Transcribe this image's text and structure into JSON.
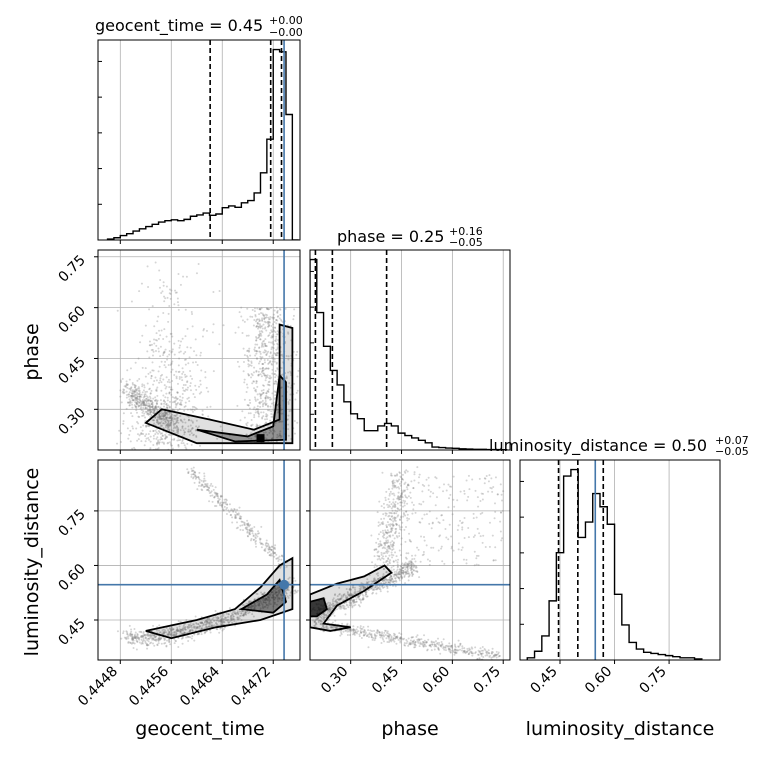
{
  "chart_data": {
    "type": "corner",
    "parameters": [
      "geocent_time",
      "phase",
      "luminosity_distance"
    ],
    "panel_titles": [
      {
        "param": "geocent_time",
        "prefix": "geocent_time = ",
        "median": "0.45",
        "upper": "+0.00",
        "lower": "−0.00"
      },
      {
        "param": "phase",
        "prefix": "phase = ",
        "median": "0.25",
        "upper": "+0.16",
        "lower": "−0.05"
      },
      {
        "param": "luminosity_distance",
        "prefix": "luminosity_distance = ",
        "median": "0.50",
        "upper": "+0.07",
        "lower": "−0.05"
      }
    ],
    "axes": {
      "geocent_time": {
        "range": [
          0.44445,
          0.44762
        ],
        "ticks": [
          0.4448,
          0.4456,
          0.4464,
          0.4472
        ],
        "tick_labels": [
          "0.4448",
          "0.4456",
          "0.4464",
          "0.4472"
        ]
      },
      "phase": {
        "range": [
          0.18,
          0.77
        ],
        "ticks": [
          0.3,
          0.45,
          0.6,
          0.75
        ],
        "tick_labels": [
          "0.30",
          "0.45",
          "0.60",
          "0.75"
        ]
      },
      "luminosity_distance": {
        "range": [
          0.34,
          0.89
        ],
        "ticks": [
          0.45,
          0.6,
          0.75
        ],
        "tick_labels": [
          "0.45",
          "0.60",
          "0.75"
        ]
      }
    },
    "truths": {
      "geocent_time": 0.44737,
      "phase": null,
      "luminosity_distance": 0.547
    },
    "truth_color": "#4477aa",
    "quantiles": {
      "geocent_time": [
        0.44621,
        0.44716,
        0.44733
      ],
      "phase": [
        0.196,
        0.246,
        0.406
      ],
      "luminosity_distance": [
        0.446,
        0.499,
        0.569
      ]
    },
    "hist_1d": {
      "geocent_time": {
        "edges": [
          0.4446,
          0.4447,
          0.4448,
          0.4449,
          0.445,
          0.4451,
          0.4452,
          0.4453,
          0.4454,
          0.4455,
          0.4456,
          0.4457,
          0.4458,
          0.4459,
          0.446,
          0.4461,
          0.4462,
          0.4463,
          0.4464,
          0.4465,
          0.4466,
          0.4467,
          0.4468,
          0.4469,
          0.447,
          0.4471,
          0.4472,
          0.4473,
          0.4474,
          0.4475
        ],
        "counts": [
          0.2,
          0.5,
          1,
          1.4,
          2,
          2.5,
          3,
          3.5,
          4,
          4.3,
          4.5,
          4.3,
          4.6,
          5.3,
          5.6,
          6,
          5.5,
          5.8,
          7.2,
          7.6,
          7.3,
          8.3,
          8.8,
          10.5,
          15,
          22.5,
          42.5,
          42,
          28,
          0
        ]
      },
      "phase": {
        "edges": [
          0.18,
          0.2,
          0.22,
          0.24,
          0.26,
          0.28,
          0.3,
          0.32,
          0.34,
          0.36,
          0.38,
          0.4,
          0.42,
          0.44,
          0.46,
          0.48,
          0.5,
          0.52,
          0.54,
          0.56,
          0.58,
          0.6,
          0.62,
          0.64,
          0.66,
          0.68,
          0.7,
          0.72,
          0.74,
          0.76
        ],
        "counts": [
          79,
          57,
          43,
          33,
          27,
          20,
          15,
          13,
          8,
          8,
          10,
          11,
          10,
          7,
          6,
          5,
          4,
          3,
          1.2,
          1,
          0.8,
          0.7,
          0.5,
          0.4,
          0.3,
          0.3,
          0.2,
          0.2,
          0.1
        ]
      },
      "luminosity_distance": {
        "edges": [
          0.36,
          0.38,
          0.4,
          0.42,
          0.44,
          0.46,
          0.48,
          0.5,
          0.52,
          0.54,
          0.56,
          0.58,
          0.6,
          0.62,
          0.64,
          0.66,
          0.68,
          0.7,
          0.72,
          0.74,
          0.76,
          0.78,
          0.8,
          0.82,
          0.84
        ],
        "counts": [
          1,
          4,
          11,
          27,
          49,
          84,
          87,
          56,
          63,
          76,
          70,
          62,
          30,
          16,
          8,
          5,
          3.5,
          3,
          2.5,
          2,
          1.5,
          1,
          1,
          0.5
        ]
      }
    },
    "contour_levels": [
      "0.39",
      "0.86"
    ],
    "xlabels": [
      "geocent_time",
      "phase",
      "luminosity_distance"
    ],
    "ylabels": [
      "phase",
      "luminosity_distance"
    ],
    "grid": true,
    "colors": {
      "hist": "#000000",
      "truth": "#4477aa",
      "quantile": "#000000",
      "grid": "#b0b0b0",
      "scatter": "#888888"
    }
  }
}
